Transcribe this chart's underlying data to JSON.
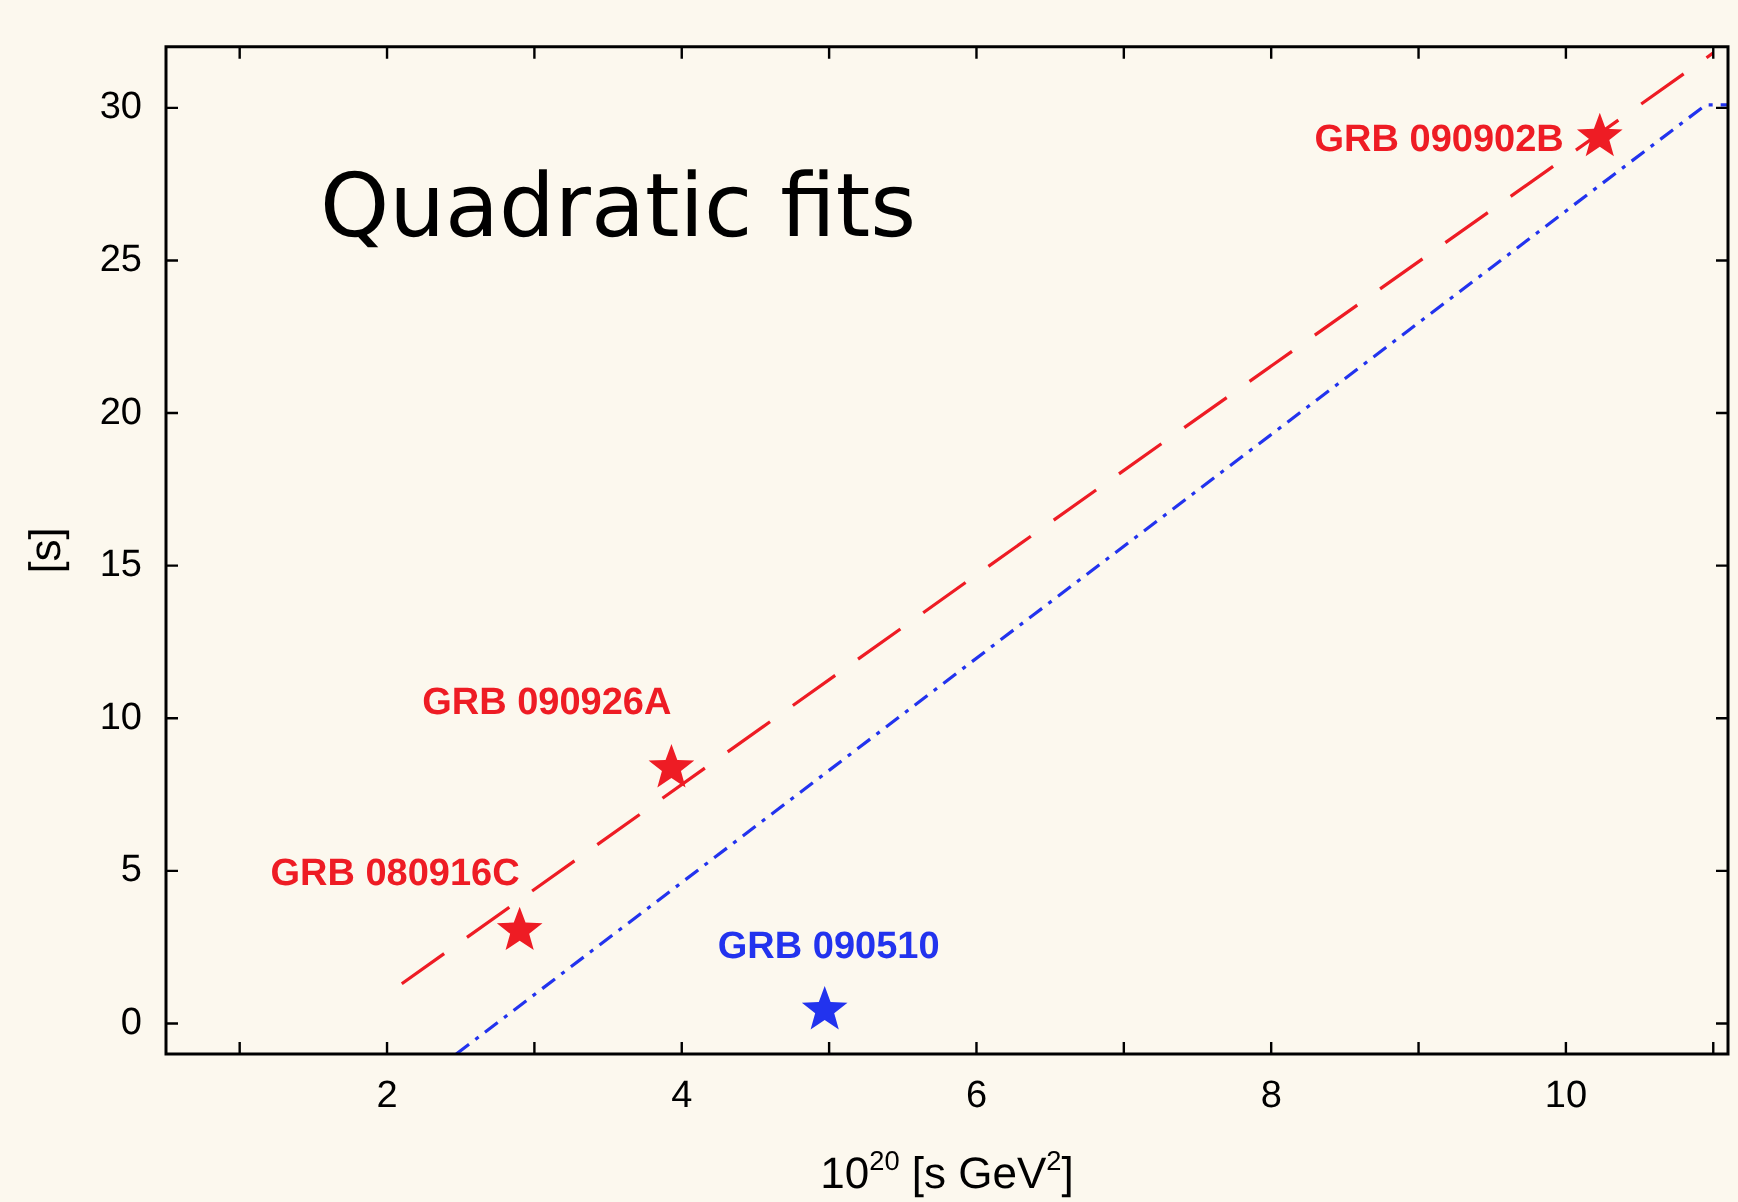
{
  "chart_data": {
    "type": "scatter",
    "annotations": [
      "Quadratic fits"
    ],
    "xlabel": "10$^{20}$ [s GeV$^{2}$]",
    "ylabel": "[s]",
    "xlim": [
      0.5,
      11.1
    ],
    "ylim": [
      -1,
      32
    ],
    "xticks": [
      {
        "value": 1,
        "label": null
      },
      2,
      {
        "value": 3,
        "label": null
      },
      4,
      {
        "value": 5,
        "label": null
      },
      6,
      {
        "value": 7,
        "label": null
      },
      8,
      {
        "value": 9,
        "label": null
      },
      10,
      {
        "value": 11,
        "label": null
      }
    ],
    "yticks": [
      0,
      5,
      10,
      15,
      20,
      25,
      30
    ],
    "grid": false,
    "legend": false,
    "series": [
      {
        "type": "line",
        "color": "#ee1c24",
        "line_style": "dashed",
        "marker": "none",
        "x": [
          2.1,
          6,
          11
        ],
        "values": [
          1.3,
          14.7,
          31.8
        ]
      },
      {
        "type": "line",
        "color": "#2233ee",
        "line_style": "dotted",
        "marker": "none",
        "x": [
          2.47,
          6.39,
          10.95,
          11.1
        ],
        "values": [
          -1,
          13.4,
          30.1,
          30.1
        ]
      },
      {
        "type": "scatter",
        "name": "GRB 090902B",
        "color": "#ee1c24",
        "marker": "star",
        "x": [
          10.23
        ],
        "values": [
          29.05
        ]
      },
      {
        "type": "scatter",
        "name": "GRB 090926A",
        "color": "#ee1c24",
        "marker": "star",
        "x": [
          3.93
        ],
        "values": [
          8.37
        ]
      },
      {
        "type": "scatter",
        "name": "GRB 080916C",
        "color": "#ee1c24",
        "marker": "star",
        "x": [
          2.9
        ],
        "values": [
          3.04
        ]
      },
      {
        "type": "scatter",
        "name": "GRB 090510",
        "color": "#2233ee",
        "marker": "star",
        "x": [
          4.97
        ],
        "values": [
          0.44
        ]
      }
    ]
  }
}
